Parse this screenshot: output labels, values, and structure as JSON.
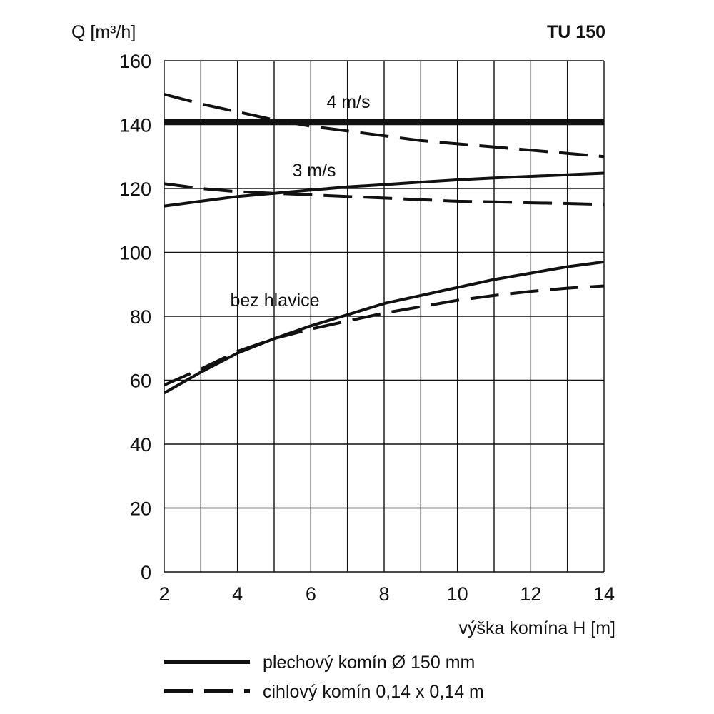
{
  "chart_data": {
    "type": "line",
    "title": "TU 150",
    "ylabel": "Q [m³/h]",
    "xlabel": "výška komína H [m]",
    "xlim": [
      2,
      14
    ],
    "ylim": [
      0,
      160
    ],
    "grid": true,
    "x_ticks": [
      2,
      4,
      6,
      8,
      10,
      12,
      14
    ],
    "y_ticks": [
      0,
      20,
      40,
      60,
      80,
      100,
      120,
      140,
      160
    ],
    "x_tick_labels": [
      "2",
      "4",
      "6",
      "8",
      "10",
      "12",
      "14"
    ],
    "y_tick_labels": [
      "0",
      "20",
      "40",
      "60",
      "80",
      "100",
      "120",
      "140",
      "160"
    ],
    "x": [
      2,
      3,
      4,
      5,
      6,
      7,
      8,
      9,
      10,
      11,
      12,
      13,
      14
    ],
    "groups": [
      {
        "label": "4 m/s",
        "plechovy": [
          141,
          141,
          141,
          141,
          141,
          141,
          141,
          141,
          141,
          141,
          141,
          141,
          141
        ],
        "cihlovy": [
          149.5,
          146.5,
          144,
          141.5,
          139.5,
          138,
          136.5,
          135,
          134,
          133,
          132,
          131,
          130
        ]
      },
      {
        "label": "3 m/s",
        "plechovy": [
          114.5,
          116,
          117.5,
          118.5,
          119.5,
          120.5,
          121.2,
          122,
          122.7,
          123.3,
          123.8,
          124.3,
          124.8
        ],
        "cihlovy": [
          121.5,
          120,
          119,
          118.5,
          118,
          117.5,
          117,
          116.5,
          116,
          115.8,
          115.5,
          115.3,
          115
        ]
      },
      {
        "label": "bez hlavice",
        "plechovy": [
          56,
          62.5,
          68.5,
          73,
          77,
          80.5,
          84,
          86.5,
          89,
          91.5,
          93.5,
          95.5,
          97
        ],
        "cihlovy": [
          58.5,
          63.5,
          69,
          73,
          76,
          78.5,
          81,
          83,
          85,
          86.5,
          87.8,
          88.8,
          89.5
        ]
      }
    ],
    "series": [
      {
        "name": "plechový komín Ø 150 mm",
        "style": "solid"
      },
      {
        "name": "cihlový komín 0,14 x 0,14 m",
        "style": "dashed"
      }
    ],
    "legend_placement": "bottom",
    "colors": {
      "line": "#111111",
      "grid": "#111111"
    }
  }
}
